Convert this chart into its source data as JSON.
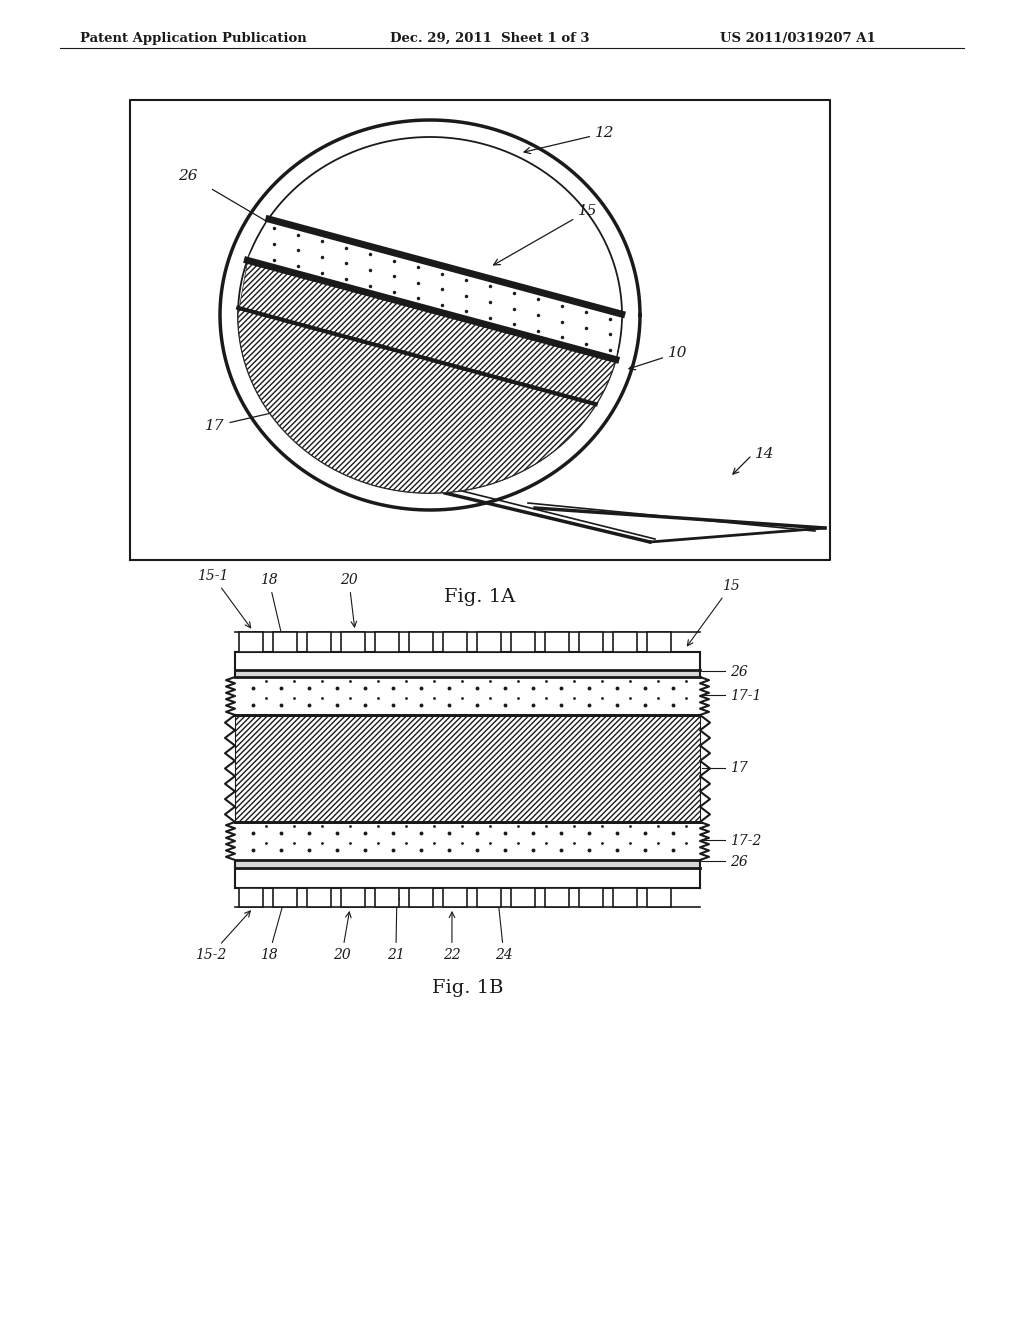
{
  "bg_color": "#ffffff",
  "header_text_left": "Patent Application Publication",
  "header_text_mid": "Dec. 29, 2011  Sheet 1 of 3",
  "header_text_right": "US 2011/0319207 A1",
  "fig1a_caption": "Fig. 1A",
  "fig1b_caption": "Fig. 1B",
  "line_color": "#1a1a1a"
}
